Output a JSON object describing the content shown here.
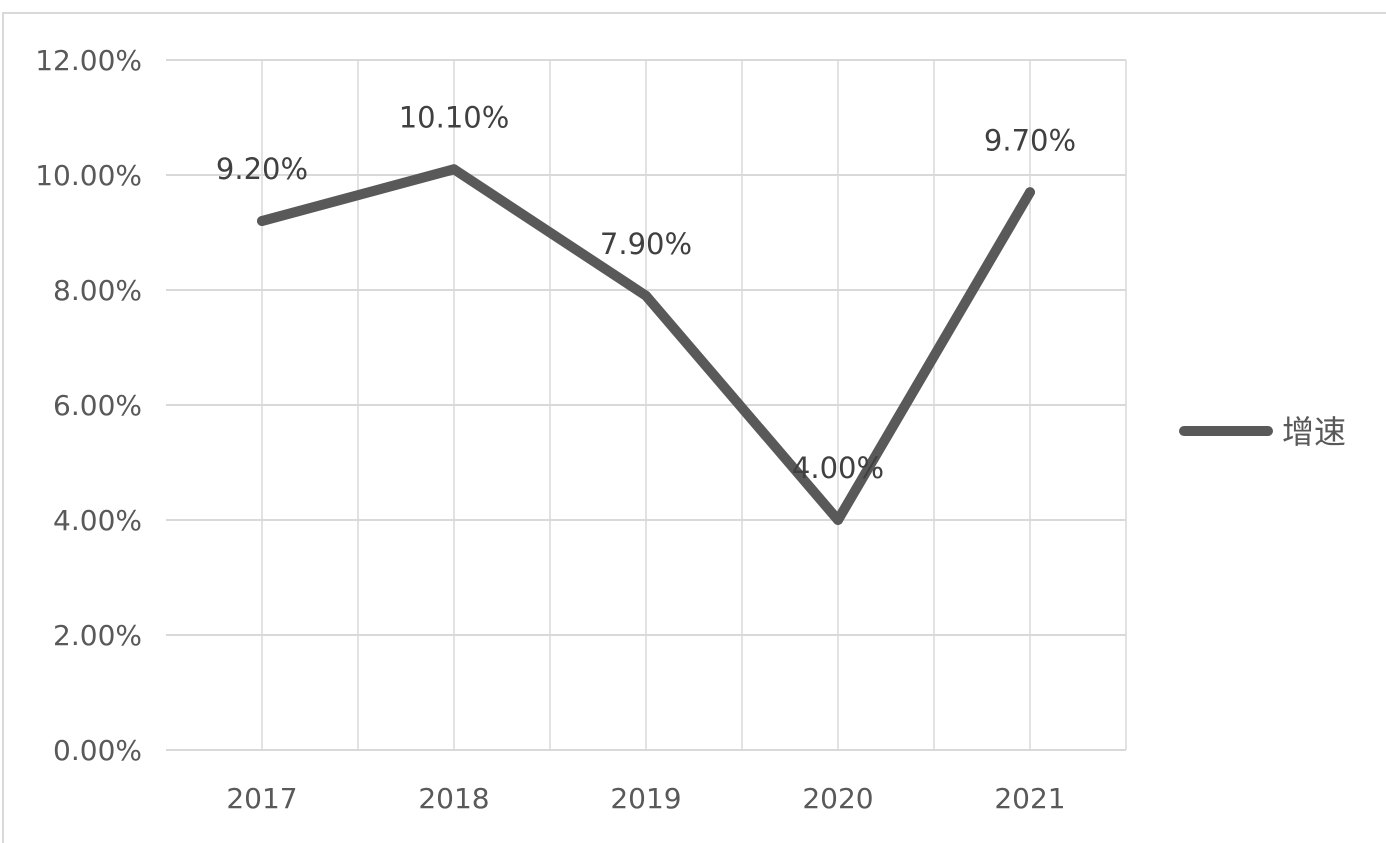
{
  "chart_data": {
    "type": "line",
    "categories": [
      "2017",
      "2018",
      "2019",
      "2020",
      "2021"
    ],
    "series": [
      {
        "name": "增速",
        "values": [
          9.2,
          10.1,
          7.9,
          4.0,
          9.7
        ],
        "data_labels": [
          "9.20%",
          "10.10%",
          "7.90%",
          "4.00%",
          "9.70%"
        ],
        "color": "#595959"
      }
    ],
    "y_ticks": [
      "0.00%",
      "2.00%",
      "4.00%",
      "6.00%",
      "8.00%",
      "10.00%",
      "12.00%"
    ],
    "ylim": [
      0,
      12
    ],
    "y_unit": "%",
    "grid": true,
    "legend": "right",
    "gridline_color": "#d9d9d9",
    "axis_label_color": "#595959"
  }
}
